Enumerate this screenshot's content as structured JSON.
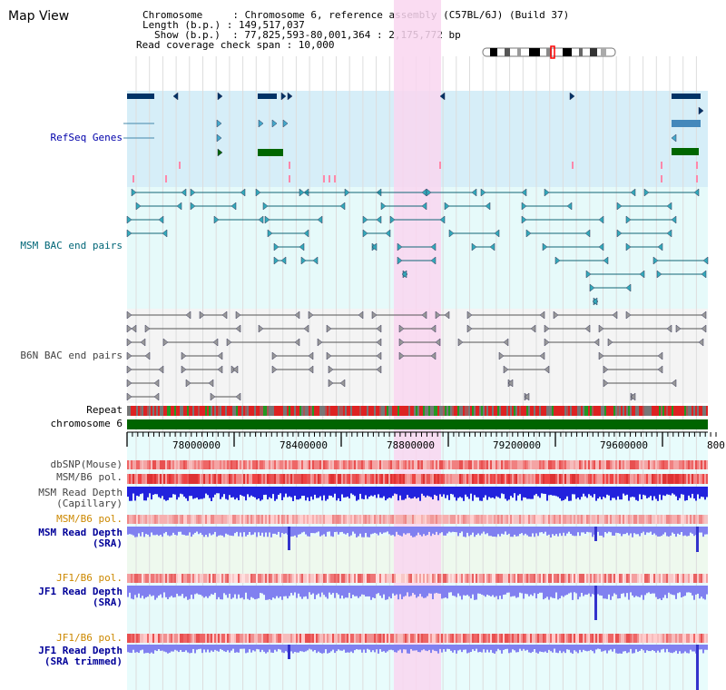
{
  "header": {
    "title": "Map View",
    "lines": [
      "Chromosome     : Chromosome 6, reference assembly (C57BL/6J) (Build 37)",
      "Length (b.p.) : 149,517,037",
      "Show (b.p.)  : 77,825,593-80,001,364 : 2,175,772 bp",
      "Read coverage check span : 10,000"
    ]
  },
  "tracks": {
    "refseq": "RefSeq Genes",
    "msm_bac": "MSM BAC end pairs",
    "b6n_bac": "B6N BAC end pairs",
    "repeat": "Repeat",
    "chromosome": "chromosome 6",
    "dbsnp": "dbSNP(Mouse)",
    "msm_b6_pol_1": "MSM/B6 pol.",
    "msm_depth_cap_1": "MSM Read Depth",
    "msm_depth_cap_2": "(Capillary)",
    "msm_b6_pol_2": "MSM/B6 pol.",
    "msm_depth_sra_1": "MSM Read Depth",
    "msm_depth_sra_2": "(SRA)",
    "jf1_b6_pol_1": "JF1/B6 pol.",
    "jf1_depth_sra_1": "JF1 Read Depth",
    "jf1_depth_sra_2": "(SRA)",
    "jf1_b6_pol_2": "JF1/B6 pol.",
    "jf1_depth_trim_1": "JF1 Read Depth",
    "jf1_depth_trim_2": "(SRA trimmed)"
  },
  "axis": {
    "ticks": [
      "78000000",
      "78400000",
      "78800000",
      "79200000",
      "79600000",
      "800"
    ]
  },
  "colors": {
    "refseq_bg": "#d6eef8",
    "bac_bg": "#e6fafa",
    "b6n_bg": "#f4f4f4",
    "highlight": "#f9d6f0",
    "chromosome": "#006400",
    "depth_blue": "#2222dd",
    "depth_light": "#8080f0"
  }
}
